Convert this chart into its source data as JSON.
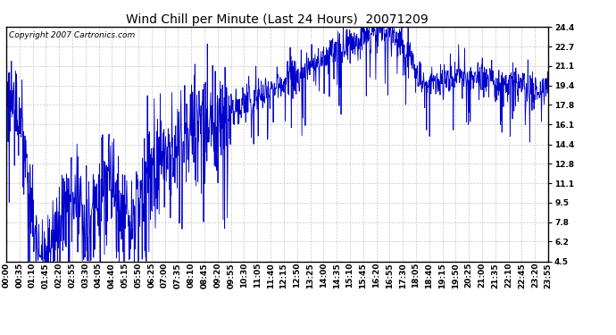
{
  "title": "Wind Chill per Minute (Last 24 Hours)  20071209",
  "copyright_text": "Copyright 2007 Cartronics.com",
  "yticks": [
    4.5,
    6.2,
    7.8,
    9.5,
    11.1,
    12.8,
    14.4,
    16.1,
    17.8,
    19.4,
    21.1,
    22.7,
    24.4
  ],
  "ylim": [
    4.5,
    24.4
  ],
  "line_color": "#0000cc",
  "bg_color": "#ffffff",
  "plot_bg_color": "#ffffff",
  "grid_color": "#bbbbbb",
  "title_fontsize": 10,
  "copyright_fontsize": 6.5,
  "tick_fontsize": 6.5,
  "minutes_per_day": 1440,
  "xtick_labels": [
    "00:00",
    "00:35",
    "01:10",
    "01:45",
    "02:20",
    "02:55",
    "03:30",
    "04:05",
    "04:40",
    "05:15",
    "05:50",
    "06:25",
    "07:00",
    "07:35",
    "08:10",
    "08:45",
    "09:20",
    "09:55",
    "10:30",
    "11:05",
    "11:40",
    "12:15",
    "12:50",
    "13:25",
    "14:00",
    "14:35",
    "15:10",
    "15:45",
    "16:20",
    "16:55",
    "17:30",
    "18:05",
    "18:40",
    "19:15",
    "19:50",
    "20:25",
    "21:00",
    "21:35",
    "22:10",
    "22:45",
    "23:20",
    "23:55"
  ]
}
